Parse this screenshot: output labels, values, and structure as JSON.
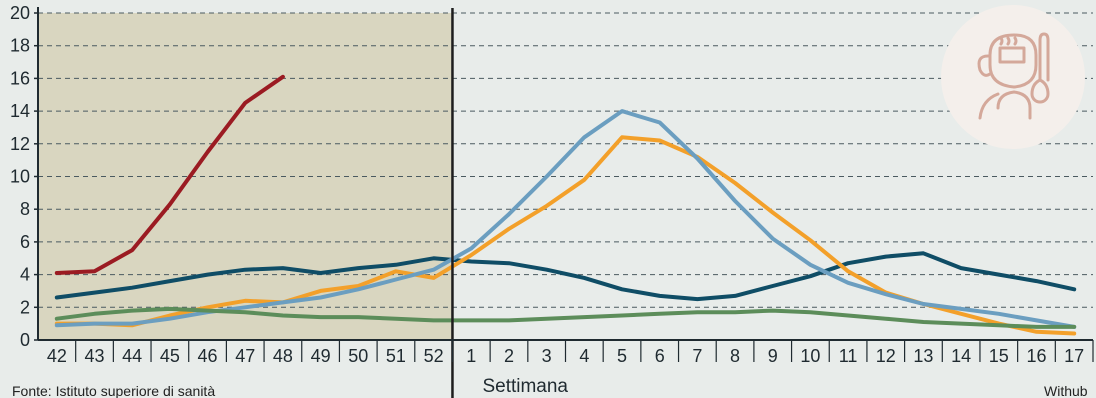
{
  "chart_data": {
    "type": "line",
    "xlabel": "Settimana",
    "ylim": [
      0,
      20
    ],
    "y_ticks": [
      "0",
      "2",
      "4",
      "6",
      "8",
      "10",
      "12",
      "14",
      "16",
      "18",
      "20"
    ],
    "categories": [
      "42",
      "43",
      "44",
      "45",
      "46",
      "47",
      "48",
      "49",
      "50",
      "51",
      "52",
      "1",
      "2",
      "3",
      "4",
      "5",
      "6",
      "7",
      "8",
      "9",
      "10",
      "11",
      "12",
      "13",
      "14",
      "15",
      "16",
      "17"
    ],
    "highlight_range": [
      "42",
      "52"
    ],
    "grid": "dashed horizontal",
    "series": [
      {
        "color": "#9b1b22",
        "values": [
          4.1,
          4.2,
          5.5,
          8.3,
          11.5,
          14.5,
          16.1,
          null,
          null,
          null,
          null,
          null,
          null,
          null,
          null,
          null,
          null,
          null,
          null,
          null,
          null,
          null,
          null,
          null,
          null,
          null,
          null,
          null
        ]
      },
      {
        "color": "#0f4d66",
        "values": [
          2.6,
          2.9,
          3.2,
          3.6,
          4.0,
          4.3,
          4.4,
          4.1,
          4.4,
          4.6,
          5.0,
          4.8,
          4.7,
          4.3,
          3.8,
          3.1,
          2.7,
          2.5,
          2.7,
          3.3,
          3.9,
          4.7,
          5.1,
          5.3,
          4.4,
          4.0,
          3.6,
          3.1
        ]
      },
      {
        "color": "#f3a02a",
        "values": [
          1.0,
          1.0,
          0.9,
          1.5,
          2.0,
          2.4,
          2.3,
          3.0,
          3.3,
          4.2,
          3.8,
          5.2,
          6.8,
          8.2,
          9.8,
          12.4,
          12.2,
          11.2,
          9.6,
          7.8,
          6.1,
          4.2,
          2.9,
          2.2,
          1.6,
          1.0,
          0.5,
          0.4
        ]
      },
      {
        "color": "#6b9ec0",
        "values": [
          0.9,
          1.0,
          1.0,
          1.3,
          1.7,
          2.0,
          2.3,
          2.6,
          3.1,
          3.7,
          4.3,
          5.6,
          7.7,
          10.0,
          12.4,
          14.0,
          13.3,
          11.1,
          8.5,
          6.2,
          4.6,
          3.5,
          2.8,
          2.2,
          1.9,
          1.6,
          1.2,
          0.8
        ]
      },
      {
        "color": "#5c8d5a",
        "values": [
          1.3,
          1.6,
          1.8,
          1.9,
          1.8,
          1.7,
          1.5,
          1.4,
          1.4,
          1.3,
          1.2,
          1.2,
          1.2,
          1.3,
          1.4,
          1.5,
          1.6,
          1.7,
          1.7,
          1.8,
          1.7,
          1.5,
          1.3,
          1.1,
          1.0,
          0.9,
          0.8,
          0.8
        ]
      }
    ]
  },
  "footer": {
    "source": "Fonte: Istituto superiore di sanità",
    "credit": "Withub"
  },
  "icons": {
    "badge": "sick-person-thermometer-icon"
  }
}
